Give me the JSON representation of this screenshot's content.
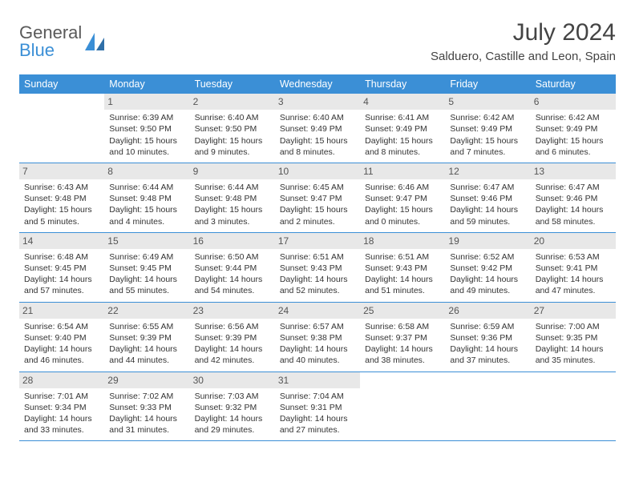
{
  "brand": {
    "name1": "General",
    "name2": "Blue"
  },
  "title": "July 2024",
  "location": "Salduero, Castille and Leon, Spain",
  "colors": {
    "header_bg": "#3b8fd6",
    "header_text": "#ffffff",
    "daynum_bg": "#e8e8e8",
    "border": "#3b8fd6",
    "page_bg": "#ffffff",
    "text": "#333333"
  },
  "days_of_week": [
    "Sunday",
    "Monday",
    "Tuesday",
    "Wednesday",
    "Thursday",
    "Friday",
    "Saturday"
  ],
  "weeks": [
    [
      {
        "n": "",
        "t": "",
        "empty": true
      },
      {
        "n": "1",
        "t": "Sunrise: 6:39 AM\nSunset: 9:50 PM\nDaylight: 15 hours and 10 minutes."
      },
      {
        "n": "2",
        "t": "Sunrise: 6:40 AM\nSunset: 9:50 PM\nDaylight: 15 hours and 9 minutes."
      },
      {
        "n": "3",
        "t": "Sunrise: 6:40 AM\nSunset: 9:49 PM\nDaylight: 15 hours and 8 minutes."
      },
      {
        "n": "4",
        "t": "Sunrise: 6:41 AM\nSunset: 9:49 PM\nDaylight: 15 hours and 8 minutes."
      },
      {
        "n": "5",
        "t": "Sunrise: 6:42 AM\nSunset: 9:49 PM\nDaylight: 15 hours and 7 minutes."
      },
      {
        "n": "6",
        "t": "Sunrise: 6:42 AM\nSunset: 9:49 PM\nDaylight: 15 hours and 6 minutes."
      }
    ],
    [
      {
        "n": "7",
        "t": "Sunrise: 6:43 AM\nSunset: 9:48 PM\nDaylight: 15 hours and 5 minutes."
      },
      {
        "n": "8",
        "t": "Sunrise: 6:44 AM\nSunset: 9:48 PM\nDaylight: 15 hours and 4 minutes."
      },
      {
        "n": "9",
        "t": "Sunrise: 6:44 AM\nSunset: 9:48 PM\nDaylight: 15 hours and 3 minutes."
      },
      {
        "n": "10",
        "t": "Sunrise: 6:45 AM\nSunset: 9:47 PM\nDaylight: 15 hours and 2 minutes."
      },
      {
        "n": "11",
        "t": "Sunrise: 6:46 AM\nSunset: 9:47 PM\nDaylight: 15 hours and 0 minutes."
      },
      {
        "n": "12",
        "t": "Sunrise: 6:47 AM\nSunset: 9:46 PM\nDaylight: 14 hours and 59 minutes."
      },
      {
        "n": "13",
        "t": "Sunrise: 6:47 AM\nSunset: 9:46 PM\nDaylight: 14 hours and 58 minutes."
      }
    ],
    [
      {
        "n": "14",
        "t": "Sunrise: 6:48 AM\nSunset: 9:45 PM\nDaylight: 14 hours and 57 minutes."
      },
      {
        "n": "15",
        "t": "Sunrise: 6:49 AM\nSunset: 9:45 PM\nDaylight: 14 hours and 55 minutes."
      },
      {
        "n": "16",
        "t": "Sunrise: 6:50 AM\nSunset: 9:44 PM\nDaylight: 14 hours and 54 minutes."
      },
      {
        "n": "17",
        "t": "Sunrise: 6:51 AM\nSunset: 9:43 PM\nDaylight: 14 hours and 52 minutes."
      },
      {
        "n": "18",
        "t": "Sunrise: 6:51 AM\nSunset: 9:43 PM\nDaylight: 14 hours and 51 minutes."
      },
      {
        "n": "19",
        "t": "Sunrise: 6:52 AM\nSunset: 9:42 PM\nDaylight: 14 hours and 49 minutes."
      },
      {
        "n": "20",
        "t": "Sunrise: 6:53 AM\nSunset: 9:41 PM\nDaylight: 14 hours and 47 minutes."
      }
    ],
    [
      {
        "n": "21",
        "t": "Sunrise: 6:54 AM\nSunset: 9:40 PM\nDaylight: 14 hours and 46 minutes."
      },
      {
        "n": "22",
        "t": "Sunrise: 6:55 AM\nSunset: 9:39 PM\nDaylight: 14 hours and 44 minutes."
      },
      {
        "n": "23",
        "t": "Sunrise: 6:56 AM\nSunset: 9:39 PM\nDaylight: 14 hours and 42 minutes."
      },
      {
        "n": "24",
        "t": "Sunrise: 6:57 AM\nSunset: 9:38 PM\nDaylight: 14 hours and 40 minutes."
      },
      {
        "n": "25",
        "t": "Sunrise: 6:58 AM\nSunset: 9:37 PM\nDaylight: 14 hours and 38 minutes."
      },
      {
        "n": "26",
        "t": "Sunrise: 6:59 AM\nSunset: 9:36 PM\nDaylight: 14 hours and 37 minutes."
      },
      {
        "n": "27",
        "t": "Sunrise: 7:00 AM\nSunset: 9:35 PM\nDaylight: 14 hours and 35 minutes."
      }
    ],
    [
      {
        "n": "28",
        "t": "Sunrise: 7:01 AM\nSunset: 9:34 PM\nDaylight: 14 hours and 33 minutes."
      },
      {
        "n": "29",
        "t": "Sunrise: 7:02 AM\nSunset: 9:33 PM\nDaylight: 14 hours and 31 minutes."
      },
      {
        "n": "30",
        "t": "Sunrise: 7:03 AM\nSunset: 9:32 PM\nDaylight: 14 hours and 29 minutes."
      },
      {
        "n": "31",
        "t": "Sunrise: 7:04 AM\nSunset: 9:31 PM\nDaylight: 14 hours and 27 minutes."
      },
      {
        "n": "",
        "t": "",
        "empty": true
      },
      {
        "n": "",
        "t": "",
        "empty": true
      },
      {
        "n": "",
        "t": "",
        "empty": true
      }
    ]
  ]
}
